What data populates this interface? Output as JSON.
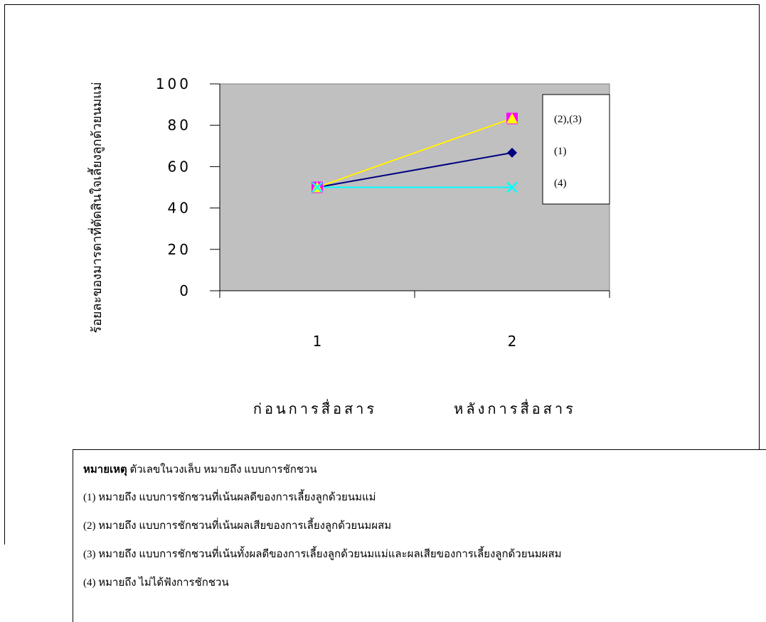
{
  "chart_data": {
    "type": "line",
    "title": "",
    "xlabel": "",
    "ylabel": "ร้อยละของมารดาที่ตัดสินใจเลี้ยงลูกด้วยนมแม่",
    "ylim": [
      0,
      100
    ],
    "yticks": [
      "0",
      "20",
      "40",
      "60",
      "80",
      "100"
    ],
    "categories": [
      "1",
      "2"
    ],
    "category_labels": [
      "ก่อนการสื่อสาร",
      "หลังการสื่อสาร"
    ],
    "series": [
      {
        "name": "(1)",
        "values": [
          50,
          66.7
        ],
        "color": "#000080",
        "marker": "diamond"
      },
      {
        "name": "(2)",
        "values": [
          50,
          83.3
        ],
        "color": "#FF00FF",
        "marker": "square"
      },
      {
        "name": "(3)",
        "values": [
          50,
          83.3
        ],
        "color": "#FFFF00",
        "marker": "triangle"
      },
      {
        "name": "(4)",
        "values": [
          50,
          50
        ],
        "color": "#00FFFF",
        "marker": "x"
      }
    ],
    "legend": {
      "placement": "right",
      "entries": [
        "(2),(3)",
        "(1)",
        "(4)"
      ]
    },
    "plot_background": "#C0C0C0",
    "grid": false
  },
  "notes": {
    "heading": "หมายเหตุ",
    "intro": " ตัวเลขในวงเล็บ หมายถึง แบบการชักชวน",
    "lines": [
      "(1) หมายถึง แบบการชักชวนที่เน้นผลดีของการเลี้ยงลูกด้วยนมแม่",
      "(2) หมายถึง แบบการชักชวนที่เน้นผลเสียของการเลี้ยงลูกด้วยนมผสม",
      "(3) หมายถึง แบบการชักชวนที่เน้นทั้งผลดีของการเลี้ยงลูกด้วยนมแม่และผลเสียของการเลี้ยงลูกด้วยนมผสม",
      "(4) หมายถึง ไม่ได้ฟังการชักชวน"
    ]
  }
}
